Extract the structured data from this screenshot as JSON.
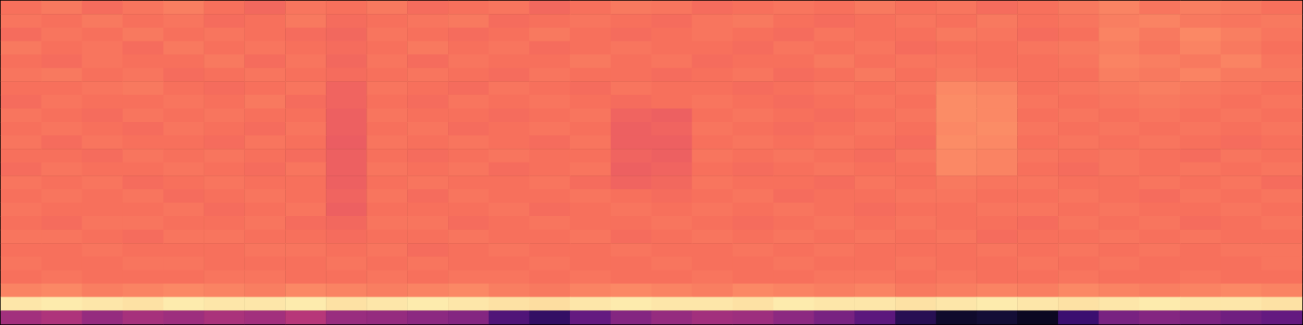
{
  "chart_data": {
    "type": "heatmap",
    "tick_labels": false,
    "grid": false,
    "color": "magma",
    "zlim": [
      0,
      1
    ],
    "cells": [
      [
        0.7,
        0.72,
        0.69,
        0.71,
        0.73,
        0.7,
        0.68,
        0.71,
        0.7,
        0.72,
        0.69,
        0.7,
        0.71,
        0.68,
        0.7,
        0.72,
        0.71,
        0.69,
        0.7,
        0.71,
        0.7,
        0.72,
        0.7,
        0.71,
        0.69,
        0.7,
        0.72,
        0.74,
        0.71,
        0.73,
        0.72,
        0.7
      ],
      [
        0.71,
        0.7,
        0.72,
        0.7,
        0.71,
        0.69,
        0.7,
        0.72,
        0.69,
        0.7,
        0.71,
        0.72,
        0.69,
        0.7,
        0.71,
        0.7,
        0.69,
        0.71,
        0.72,
        0.7,
        0.69,
        0.7,
        0.71,
        0.7,
        0.72,
        0.7,
        0.71,
        0.73,
        0.74,
        0.72,
        0.71,
        0.72
      ],
      [
        0.69,
        0.71,
        0.7,
        0.72,
        0.7,
        0.71,
        0.7,
        0.69,
        0.68,
        0.71,
        0.7,
        0.69,
        0.7,
        0.72,
        0.7,
        0.69,
        0.7,
        0.71,
        0.7,
        0.69,
        0.71,
        0.7,
        0.7,
        0.72,
        0.71,
        0.69,
        0.7,
        0.74,
        0.72,
        0.75,
        0.73,
        0.71
      ],
      [
        0.72,
        0.7,
        0.71,
        0.69,
        0.72,
        0.7,
        0.71,
        0.7,
        0.69,
        0.7,
        0.72,
        0.7,
        0.71,
        0.69,
        0.7,
        0.71,
        0.7,
        0.7,
        0.69,
        0.71,
        0.7,
        0.71,
        0.69,
        0.7,
        0.7,
        0.71,
        0.72,
        0.73,
        0.71,
        0.74,
        0.72,
        0.7
      ],
      [
        0.7,
        0.69,
        0.71,
        0.7,
        0.7,
        0.72,
        0.69,
        0.71,
        0.68,
        0.71,
        0.69,
        0.71,
        0.7,
        0.7,
        0.72,
        0.7,
        0.71,
        0.69,
        0.7,
        0.7,
        0.72,
        0.7,
        0.71,
        0.71,
        0.7,
        0.7,
        0.71,
        0.74,
        0.73,
        0.72,
        0.74,
        0.71
      ],
      [
        0.71,
        0.72,
        0.7,
        0.71,
        0.69,
        0.7,
        0.71,
        0.7,
        0.69,
        0.7,
        0.71,
        0.7,
        0.69,
        0.71,
        0.7,
        0.7,
        0.69,
        0.7,
        0.71,
        0.69,
        0.7,
        0.72,
        0.7,
        0.72,
        0.71,
        0.7,
        0.7,
        0.73,
        0.72,
        0.74,
        0.72,
        0.72
      ],
      [
        0.7,
        0.7,
        0.71,
        0.72,
        0.7,
        0.69,
        0.7,
        0.71,
        0.67,
        0.71,
        0.7,
        0.69,
        0.71,
        0.7,
        0.69,
        0.71,
        0.7,
        0.7,
        0.69,
        0.7,
        0.71,
        0.7,
        0.71,
        0.75,
        0.74,
        0.7,
        0.71,
        0.72,
        0.73,
        0.72,
        0.71,
        0.7
      ],
      [
        0.69,
        0.71,
        0.7,
        0.7,
        0.71,
        0.7,
        0.72,
        0.69,
        0.67,
        0.7,
        0.69,
        0.71,
        0.7,
        0.71,
        0.7,
        0.69,
        0.7,
        0.71,
        0.7,
        0.69,
        0.7,
        0.71,
        0.7,
        0.76,
        0.75,
        0.71,
        0.7,
        0.71,
        0.72,
        0.71,
        0.7,
        0.71
      ],
      [
        0.71,
        0.7,
        0.69,
        0.71,
        0.7,
        0.71,
        0.7,
        0.7,
        0.66,
        0.71,
        0.7,
        0.7,
        0.69,
        0.7,
        0.71,
        0.67,
        0.66,
        0.7,
        0.71,
        0.7,
        0.69,
        0.7,
        0.71,
        0.76,
        0.75,
        0.7,
        0.71,
        0.7,
        0.71,
        0.7,
        0.71,
        0.7
      ],
      [
        0.7,
        0.71,
        0.7,
        0.69,
        0.71,
        0.7,
        0.69,
        0.71,
        0.66,
        0.7,
        0.71,
        0.69,
        0.7,
        0.71,
        0.7,
        0.66,
        0.67,
        0.71,
        0.7,
        0.69,
        0.7,
        0.71,
        0.7,
        0.75,
        0.76,
        0.71,
        0.7,
        0.71,
        0.7,
        0.71,
        0.7,
        0.71
      ],
      [
        0.71,
        0.69,
        0.71,
        0.7,
        0.7,
        0.69,
        0.71,
        0.7,
        0.65,
        0.71,
        0.7,
        0.71,
        0.7,
        0.69,
        0.71,
        0.66,
        0.66,
        0.7,
        0.71,
        0.7,
        0.71,
        0.7,
        0.69,
        0.76,
        0.75,
        0.7,
        0.71,
        0.7,
        0.71,
        0.7,
        0.69,
        0.7
      ],
      [
        0.7,
        0.7,
        0.69,
        0.71,
        0.7,
        0.71,
        0.7,
        0.69,
        0.66,
        0.7,
        0.69,
        0.7,
        0.71,
        0.7,
        0.7,
        0.67,
        0.66,
        0.71,
        0.7,
        0.71,
        0.7,
        0.69,
        0.71,
        0.75,
        0.74,
        0.71,
        0.7,
        0.71,
        0.7,
        0.69,
        0.71,
        0.7
      ],
      [
        0.69,
        0.71,
        0.7,
        0.7,
        0.71,
        0.7,
        0.69,
        0.71,
        0.66,
        0.71,
        0.7,
        0.71,
        0.69,
        0.7,
        0.71,
        0.66,
        0.67,
        0.7,
        0.69,
        0.7,
        0.71,
        0.7,
        0.7,
        0.75,
        0.74,
        0.7,
        0.69,
        0.71,
        0.7,
        0.71,
        0.7,
        0.71
      ],
      [
        0.71,
        0.7,
        0.71,
        0.69,
        0.7,
        0.71,
        0.7,
        0.7,
        0.66,
        0.7,
        0.71,
        0.7,
        0.7,
        0.71,
        0.69,
        0.67,
        0.68,
        0.71,
        0.7,
        0.7,
        0.69,
        0.71,
        0.7,
        0.72,
        0.71,
        0.71,
        0.7,
        0.7,
        0.71,
        0.7,
        0.71,
        0.69
      ],
      [
        0.7,
        0.71,
        0.7,
        0.71,
        0.69,
        0.7,
        0.71,
        0.7,
        0.67,
        0.71,
        0.69,
        0.71,
        0.7,
        0.7,
        0.71,
        0.7,
        0.69,
        0.7,
        0.71,
        0.69,
        0.7,
        0.7,
        0.71,
        0.71,
        0.7,
        0.7,
        0.71,
        0.7,
        0.69,
        0.71,
        0.7,
        0.71
      ],
      [
        0.71,
        0.7,
        0.7,
        0.7,
        0.71,
        0.69,
        0.7,
        0.71,
        0.66,
        0.7,
        0.7,
        0.7,
        0.71,
        0.69,
        0.7,
        0.71,
        0.7,
        0.71,
        0.7,
        0.71,
        0.7,
        0.69,
        0.7,
        0.7,
        0.71,
        0.71,
        0.7,
        0.71,
        0.7,
        0.7,
        0.71,
        0.7
      ],
      [
        0.7,
        0.69,
        0.71,
        0.71,
        0.7,
        0.7,
        0.71,
        0.69,
        0.68,
        0.71,
        0.71,
        0.69,
        0.7,
        0.71,
        0.7,
        0.7,
        0.71,
        0.7,
        0.69,
        0.7,
        0.71,
        0.7,
        0.71,
        0.7,
        0.7,
        0.69,
        0.71,
        0.7,
        0.71,
        0.69,
        0.7,
        0.71
      ],
      [
        0.71,
        0.71,
        0.7,
        0.69,
        0.71,
        0.71,
        0.7,
        0.7,
        0.69,
        0.7,
        0.7,
        0.71,
        0.7,
        0.7,
        0.71,
        0.69,
        0.7,
        0.71,
        0.7,
        0.71,
        0.7,
        0.71,
        0.7,
        0.71,
        0.69,
        0.7,
        0.7,
        0.71,
        0.7,
        0.71,
        0.7,
        0.7
      ],
      [
        0.7,
        0.7,
        0.71,
        0.7,
        0.7,
        0.7,
        0.71,
        0.71,
        0.7,
        0.71,
        0.69,
        0.7,
        0.71,
        0.7,
        0.7,
        0.71,
        0.7,
        0.7,
        0.71,
        0.7,
        0.71,
        0.7,
        0.7,
        0.7,
        0.71,
        0.7,
        0.71,
        0.7,
        0.71,
        0.7,
        0.71,
        0.71
      ],
      [
        0.71,
        0.7,
        0.7,
        0.71,
        0.71,
        0.7,
        0.7,
        0.7,
        0.71,
        0.7,
        0.71,
        0.7,
        0.7,
        0.71,
        0.7,
        0.7,
        0.71,
        0.7,
        0.7,
        0.71,
        0.7,
        0.7,
        0.71,
        0.7,
        0.7,
        0.71,
        0.7,
        0.71,
        0.7,
        0.7,
        0.7,
        0.71
      ],
      [
        0.7,
        0.71,
        0.7,
        0.7,
        0.7,
        0.71,
        0.71,
        0.7,
        0.7,
        0.71,
        0.7,
        0.71,
        0.71,
        0.7,
        0.71,
        0.7,
        0.7,
        0.71,
        0.7,
        0.7,
        0.71,
        0.71,
        0.7,
        0.71,
        0.7,
        0.7,
        0.71,
        0.7,
        0.7,
        0.71,
        0.7,
        0.7
      ],
      [
        0.74,
        0.75,
        0.73,
        0.74,
        0.75,
        0.74,
        0.73,
        0.75,
        0.74,
        0.73,
        0.74,
        0.75,
        0.73,
        0.72,
        0.74,
        0.75,
        0.74,
        0.73,
        0.75,
        0.74,
        0.73,
        0.74,
        0.72,
        0.73,
        0.74,
        0.73,
        0.75,
        0.74,
        0.73,
        0.74,
        0.75,
        0.74
      ],
      [
        0.95,
        0.96,
        0.95,
        0.94,
        0.96,
        0.95,
        0.95,
        0.96,
        0.94,
        0.95,
        0.96,
        0.95,
        0.94,
        0.93,
        0.95,
        0.96,
        0.95,
        0.95,
        0.94,
        0.96,
        0.95,
        0.95,
        0.94,
        0.95,
        0.96,
        0.95,
        0.94,
        0.95,
        0.96,
        0.95,
        0.95,
        0.94
      ],
      [
        0.45,
        0.48,
        0.42,
        0.46,
        0.44,
        0.47,
        0.45,
        0.5,
        0.43,
        0.42,
        0.4,
        0.38,
        0.25,
        0.18,
        0.3,
        0.38,
        0.42,
        0.45,
        0.44,
        0.4,
        0.35,
        0.28,
        0.15,
        0.08,
        0.1,
        0.06,
        0.2,
        0.35,
        0.38,
        0.36,
        0.33,
        0.3
      ]
    ]
  }
}
